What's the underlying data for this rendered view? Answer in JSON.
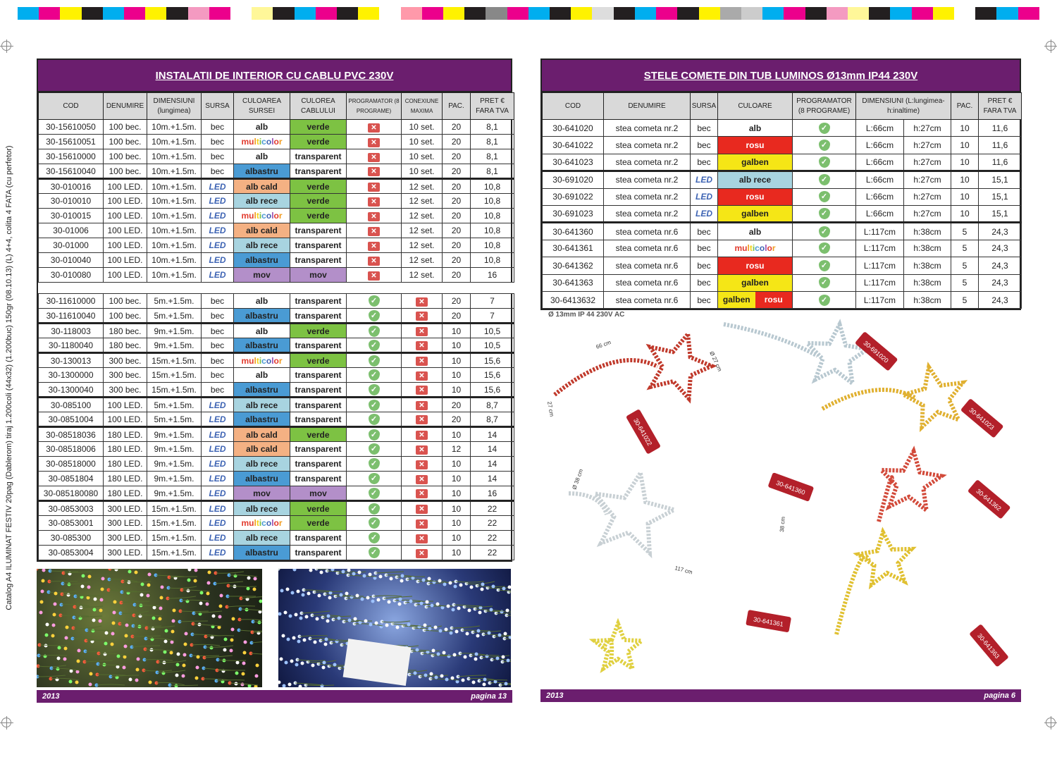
{
  "print_info": "Catalog A4 ILUMINAT FESTIV 20pag (Dablerom) tiraj 1.200coli (44x32) (1.200buc) 150gr (08.10.13) (L) 4+4, colita 4 FATA (cu perfetor)",
  "colors": {
    "purple": "#6b1e6e",
    "verde": "#7dc243",
    "albastru": "#4a9bd4",
    "alb rece": "#a8d4e0",
    "alb cald": "#f4b183",
    "mov": "#b38fc9",
    "rosu": "#e8291f",
    "galben": "#f5e616",
    "alb": "#ffffff",
    "transparent": "#ffffff"
  },
  "icons": {
    "yes": "green-check-shield-icon",
    "no": "red-x-icon"
  },
  "left": {
    "title": "INSTALATII DE INTERIOR CU CABLU PVC 230V",
    "headers": [
      "COD",
      "DENUMIRE",
      "DIMENSIUNI (lungimea)",
      "SURSA",
      "CULOAREA SURSEI",
      "CULOREA CABLULUI",
      "PROGRAMATOR (8 PROGRAME)",
      "CONEXIUNE MAXIMA",
      "PAC.",
      "PRET € FARA TVA"
    ],
    "groups": [
      [
        [
          "30-15610050",
          "100 bec.",
          "10m.+1.5m.",
          "bec",
          "alb",
          "verde",
          "no",
          "10 set.",
          "20",
          "8,1"
        ],
        [
          "30-15610051",
          "100 bec.",
          "10m.+1.5m.",
          "bec",
          "multicolor",
          "verde",
          "no",
          "10 set.",
          "20",
          "8,1"
        ],
        [
          "30-15610000",
          "100 bec.",
          "10m.+1.5m.",
          "bec",
          "alb",
          "transparent",
          "no",
          "10 set.",
          "20",
          "8,1"
        ],
        [
          "30-15610040",
          "100 bec.",
          "10m.+1.5m.",
          "bec",
          "albastru",
          "transparent",
          "no",
          "10 set.",
          "20",
          "8,1"
        ]
      ],
      [
        [
          "30-010016",
          "100 LED.",
          "10m.+1.5m.",
          "LED",
          "alb cald",
          "verde",
          "no",
          "12 set.",
          "20",
          "10,8"
        ],
        [
          "30-010010",
          "100 LED.",
          "10m.+1.5m.",
          "LED",
          "alb rece",
          "verde",
          "no",
          "12 set.",
          "20",
          "10,8"
        ],
        [
          "30-010015",
          "100 LED.",
          "10m.+1.5m.",
          "LED",
          "multicolor",
          "verde",
          "no",
          "12 set.",
          "20",
          "10,8"
        ],
        [
          "30-01006",
          "100 LED.",
          "10m.+1.5m.",
          "LED",
          "alb cald",
          "transparent",
          "no",
          "12 set.",
          "20",
          "10,8"
        ],
        [
          "30-01000",
          "100 LED.",
          "10m.+1.5m.",
          "LED",
          "alb rece",
          "transparent",
          "no",
          "12 set.",
          "20",
          "10,8"
        ],
        [
          "30-010040",
          "100 LED.",
          "10m.+1.5m.",
          "LED",
          "albastru",
          "transparent",
          "no",
          "12 set.",
          "20",
          "10,8"
        ],
        [
          "30-010080",
          "100 LED.",
          "10m.+1.5m.",
          "LED",
          "mov",
          "mov",
          "no",
          "12 set.",
          "20",
          "16"
        ]
      ],
      [
        [
          "30-11610000",
          "100 bec.",
          "5m.+1.5m.",
          "bec",
          "alb",
          "transparent",
          "yes",
          "no",
          "20",
          "7"
        ],
        [
          "30-11610040",
          "100 bec.",
          "5m.+1.5m.",
          "bec",
          "albastru",
          "transparent",
          "yes",
          "no",
          "20",
          "7"
        ],
        [
          "30-118003",
          "180 bec.",
          "9m.+1.5m.",
          "bec",
          "alb",
          "verde",
          "yes",
          "no",
          "10",
          "10,5"
        ],
        [
          "30-1180040",
          "180 bec.",
          "9m.+1.5m.",
          "bec",
          "albastru",
          "transparent",
          "yes",
          "no",
          "10",
          "10,5"
        ],
        [
          "30-130013",
          "300 bec.",
          "15m.+1.5m.",
          "bec",
          "multicolor",
          "verde",
          "yes",
          "no",
          "10",
          "15,6"
        ],
        [
          "30-1300000",
          "300 bec.",
          "15m.+1.5m.",
          "bec",
          "alb",
          "transparent",
          "yes",
          "no",
          "10",
          "15,6"
        ],
        [
          "30-1300040",
          "300 bec.",
          "15m.+1.5m.",
          "bec",
          "albastru",
          "transparent",
          "yes",
          "no",
          "10",
          "15,6"
        ]
      ],
      [
        [
          "30-085100",
          "100 LED.",
          "5m.+1.5m.",
          "LED",
          "alb rece",
          "transparent",
          "yes",
          "no",
          "20",
          "8,7"
        ],
        [
          "30-0851004",
          "100 LED.",
          "5m.+1.5m.",
          "LED",
          "albastru",
          "transparent",
          "yes",
          "no",
          "20",
          "8,7"
        ],
        [
          "30-08518036",
          "180 LED.",
          "9m.+1.5m.",
          "LED",
          "alb cald",
          "verde",
          "yes",
          "no",
          "10",
          "14"
        ],
        [
          "30-08518006",
          "180 LED.",
          "9m.+1.5m.",
          "LED",
          "alb cald",
          "transparent",
          "yes",
          "no",
          "12",
          "14"
        ],
        [
          "30-08518000",
          "180 LED.",
          "9m.+1.5m.",
          "LED",
          "alb rece",
          "transparent",
          "yes",
          "no",
          "10",
          "14"
        ],
        [
          "30-0851804",
          "180 LED.",
          "9m.+1.5m.",
          "LED",
          "albastru",
          "transparent",
          "yes",
          "no",
          "10",
          "14"
        ],
        [
          "30-085180080",
          "180 LED.",
          "9m.+1.5m.",
          "LED",
          "mov",
          "mov",
          "yes",
          "no",
          "10",
          "16"
        ],
        [
          "30-0853003",
          "300 LED.",
          "15m.+1.5m.",
          "LED",
          "alb rece",
          "verde",
          "yes",
          "no",
          "10",
          "22"
        ],
        [
          "30-0853001",
          "300 LED.",
          "15m.+1.5m.",
          "LED",
          "multicolor",
          "verde",
          "yes",
          "no",
          "10",
          "22"
        ],
        [
          "30-085300",
          "300 LED.",
          "15m.+1.5m.",
          "LED",
          "alb rece",
          "transparent",
          "yes",
          "no",
          "10",
          "22"
        ],
        [
          "30-0853004",
          "300 LED.",
          "15m.+1.5m.",
          "LED",
          "albastru",
          "transparent",
          "yes",
          "no",
          "10",
          "22"
        ]
      ]
    ],
    "footer": {
      "year": "2013",
      "page": "pagina 13"
    }
  },
  "right": {
    "title": "STELE COMETE DIN TUB LUMINOS Ø13mm IP44 230V",
    "headers": [
      "COD",
      "DENUMIRE",
      "SURSA",
      "CULOARE",
      "PROGRAMATOR (8 PROGRAME)",
      "DIMENSIUNI (L:lungimea-h:inaltime)",
      "PAC.",
      "PRET € FARA TVA"
    ],
    "rows": [
      [
        "30-641020",
        "stea cometa nr.2",
        "bec",
        "alb",
        "yes",
        "L:66cm",
        "h:27cm",
        "10",
        "11,6"
      ],
      [
        "30-641022",
        "stea cometa nr.2",
        "bec",
        "rosu",
        "yes",
        "L:66cm",
        "h:27cm",
        "10",
        "11,6"
      ],
      [
        "30-641023",
        "stea cometa nr.2",
        "bec",
        "galben",
        "yes",
        "L:66cm",
        "h:27cm",
        "10",
        "11,6"
      ],
      [
        "30-691020",
        "stea cometa nr.2",
        "LED",
        "alb rece",
        "yes",
        "L:66cm",
        "h:27cm",
        "10",
        "15,1"
      ],
      [
        "30-691022",
        "stea cometa nr.2",
        "LED",
        "rosu",
        "yes",
        "L:66cm",
        "h:27cm",
        "10",
        "15,1"
      ],
      [
        "30-691023",
        "stea cometa nr.2",
        "LED",
        "galben",
        "yes",
        "L:66cm",
        "h:27cm",
        "10",
        "15,1"
      ],
      [
        "30-641360",
        "stea cometa nr.6",
        "bec",
        "alb",
        "yes",
        "L:117cm",
        "h:38cm",
        "5",
        "24,3"
      ],
      [
        "30-641361",
        "stea cometa nr.6",
        "bec",
        "multicolor",
        "yes",
        "L:117cm",
        "h:38cm",
        "5",
        "24,3"
      ],
      [
        "30-641362",
        "stea cometa nr.6",
        "bec",
        "rosu",
        "yes",
        "L:117cm",
        "h:38cm",
        "5",
        "24,3"
      ],
      [
        "30-641363",
        "stea cometa nr.6",
        "bec",
        "galben",
        "yes",
        "L:117cm",
        "h:38cm",
        "5",
        "24,3"
      ],
      [
        "30-6413632",
        "stea cometa nr.6",
        "bec",
        "galben|rosu",
        "yes",
        "L:117cm",
        "h:38cm",
        "5",
        "24,3"
      ]
    ],
    "spec": "Ø 13mm   IP 44   230V AC",
    "tags": [
      "30-641022",
      "30-691020",
      "30-641023",
      "30-641360",
      "30-641362",
      "30-641361",
      "30-641363"
    ],
    "dims": [
      "66 cm",
      "Ø 27 cm",
      "27 cm",
      "Ø 38 cm",
      "117 cm",
      "38 cm"
    ],
    "footer": {
      "year": "2013",
      "page": "pagina 6"
    }
  }
}
